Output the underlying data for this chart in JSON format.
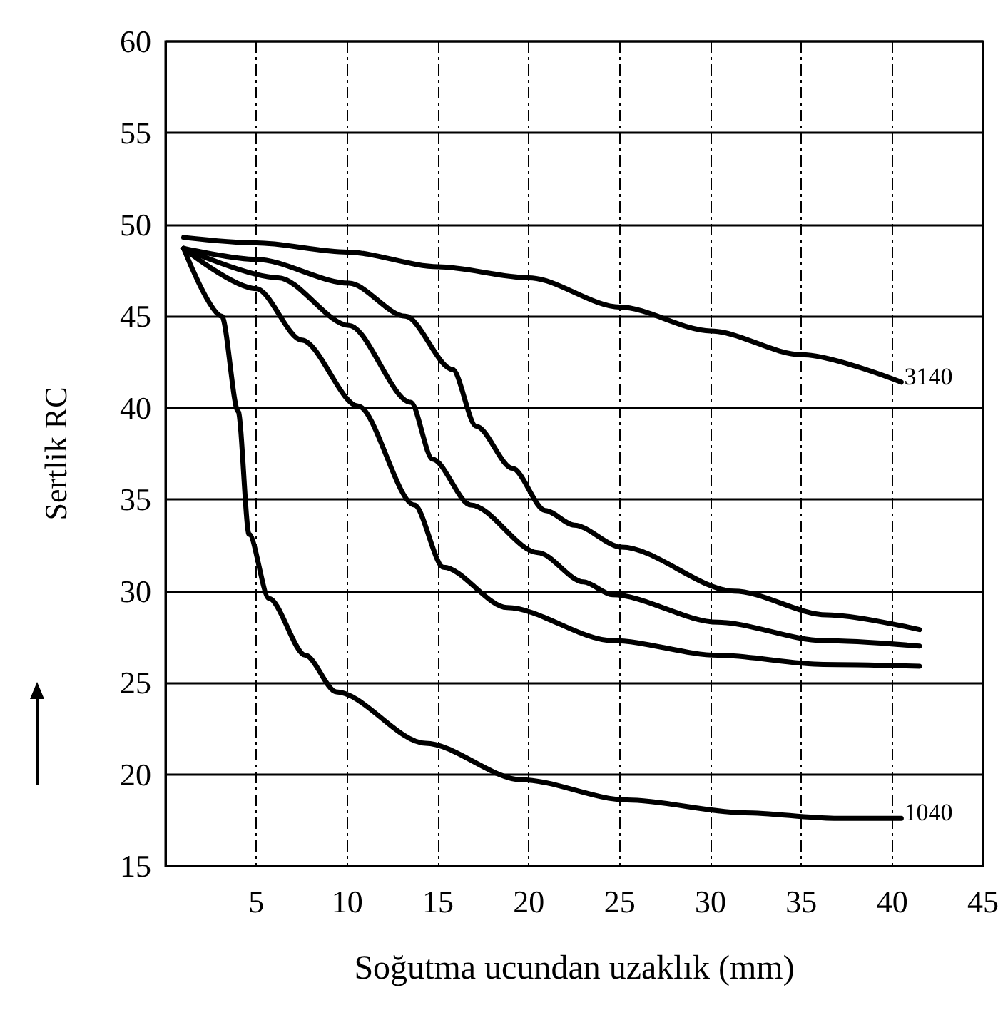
{
  "chart_data": {
    "type": "line",
    "xlabel": "Soğutma ucundan uzaklık (mm)",
    "ylabel": "Sertlik RC",
    "xlim": [
      0,
      45
    ],
    "xticks": [
      5,
      10,
      15,
      20,
      25,
      30,
      35,
      40,
      45
    ],
    "ylim": [
      15,
      60
    ],
    "yticks": [
      15,
      20,
      25,
      30,
      35,
      40,
      45,
      50,
      55,
      60
    ],
    "grid": true,
    "legend": false,
    "marker": "none",
    "line_style": "solid",
    "series": [
      {
        "name": "3140",
        "color": "#000000",
        "x": [
          1,
          5,
          10,
          15,
          20,
          25,
          30,
          35,
          40.5
        ],
        "values": [
          49.3,
          49,
          48.5,
          47.7,
          47.1,
          45.5,
          44.2,
          42.9,
          41.4
        ]
      },
      {
        "color": "#000000",
        "x": [
          1,
          5,
          10.1,
          13.2,
          15.8,
          17.1,
          19.1,
          20.9,
          22.5,
          25.1,
          31.3,
          36.4,
          41.5
        ],
        "values": [
          48.7,
          48.1,
          46.8,
          45,
          42.1,
          39,
          36.7,
          34.4,
          33.6,
          32.4,
          30,
          28.7,
          27.9
        ]
      },
      {
        "color": "#000000",
        "x": [
          1,
          6.2,
          10.1,
          13.5,
          14.7,
          16.8,
          20.5,
          23,
          24.6,
          30.4,
          36.2,
          41.5
        ],
        "values": [
          48.7,
          47.1,
          44.5,
          40.3,
          37.2,
          34.7,
          32.1,
          30.5,
          29.8,
          28.3,
          27.3,
          27
        ]
      },
      {
        "color": "#000000",
        "x": [
          1,
          5,
          7.5,
          10.6,
          13.7,
          15.3,
          18.8,
          24.6,
          30.4,
          36.2,
          41.5
        ],
        "values": [
          48.7,
          46.5,
          43.7,
          40.1,
          34.7,
          31.3,
          29.1,
          27.3,
          26.5,
          26,
          25.9
        ]
      },
      {
        "name": "1040",
        "color": "#000000",
        "x": [
          1,
          3.1,
          4,
          4.6,
          5.7,
          7.7,
          9.4,
          14.3,
          19.6,
          25.4,
          31.9,
          36.8,
          40.5
        ],
        "values": [
          48.7,
          45,
          39.8,
          33.1,
          29.6,
          26.5,
          24.5,
          21.7,
          19.7,
          18.6,
          17.9,
          17.6,
          17.6
        ]
      }
    ]
  }
}
